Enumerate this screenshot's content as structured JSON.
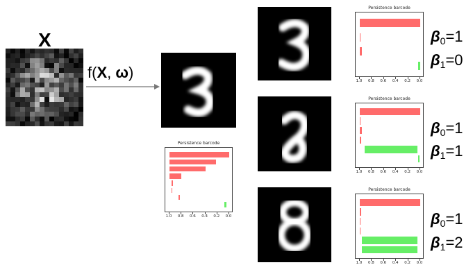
{
  "input": {
    "label": "X"
  },
  "function": {
    "prefix": "f(",
    "x": "X",
    "sep": ", ",
    "omega": "ω",
    "suffix": ")"
  },
  "barcode_title": "Persistence barcode",
  "axis_ticks": [
    "1.0",
    "0.8",
    "0.6",
    "0.4",
    "0.2",
    "0.0"
  ],
  "colors": {
    "h0": "#ff6b6b",
    "h1": "#66ee66",
    "frame": "#444444"
  },
  "chart_data": [
    {
      "type": "bar",
      "title": "Persistence barcode",
      "x_ticks": [
        "1.0",
        "0.8",
        "0.6",
        "0.4",
        "0.2",
        "0.0"
      ],
      "xlim": [
        1.0,
        0.0
      ],
      "bars": [
        {
          "dim": 0,
          "birth": 1.0,
          "death": 0.0
        },
        {
          "dim": 0,
          "birth": 1.0,
          "death": 0.22
        },
        {
          "dim": 0,
          "birth": 1.0,
          "death": 0.4
        },
        {
          "dim": 0,
          "birth": 1.0,
          "death": 0.8
        },
        {
          "dim": 0,
          "birth": 0.96,
          "death": 0.94
        },
        {
          "dim": 0,
          "birth": 0.96,
          "death": 0.955
        },
        {
          "dim": 0,
          "birth": 0.85,
          "death": 0.82
        },
        {
          "dim": 1,
          "birth": 0.08,
          "death": 0.05
        }
      ]
    },
    {
      "type": "bar",
      "title": "Persistence barcode",
      "x_ticks": [
        "1.0",
        "0.8",
        "0.6",
        "0.4",
        "0.2",
        "0.0"
      ],
      "xlim": [
        1.0,
        0.0
      ],
      "bars": [
        {
          "dim": 0,
          "birth": 1.0,
          "death": 0.0
        },
        {
          "dim": 0,
          "birth": 1.0,
          "death": 0.99
        },
        {
          "dim": 0,
          "birth": 1.0,
          "death": 0.97
        },
        {
          "dim": 1,
          "birth": 0.03,
          "death": 0.0
        }
      ]
    },
    {
      "type": "bar",
      "title": "Persistence barcode",
      "x_ticks": [
        "1.0",
        "0.8",
        "0.6",
        "0.4",
        "0.2",
        "0.0"
      ],
      "xlim": [
        1.0,
        0.0
      ],
      "bars": [
        {
          "dim": 0,
          "birth": 1.0,
          "death": 0.0
        },
        {
          "dim": 0,
          "birth": 1.0,
          "death": 0.99
        },
        {
          "dim": 0,
          "birth": 1.0,
          "death": 0.97
        },
        {
          "dim": 0,
          "birth": 1.0,
          "death": 0.98
        },
        {
          "dim": 1,
          "birth": 0.92,
          "death": 0.05
        },
        {
          "dim": 1,
          "birth": 0.03,
          "death": 0.01
        }
      ]
    },
    {
      "type": "bar",
      "title": "Persistence barcode",
      "x_ticks": [
        "1.0",
        "0.8",
        "0.6",
        "0.4",
        "0.2",
        "0.0"
      ],
      "xlim": [
        1.0,
        0.0
      ],
      "bars": [
        {
          "dim": 0,
          "birth": 1.0,
          "death": 0.0
        },
        {
          "dim": 0,
          "birth": 1.0,
          "death": 0.98
        },
        {
          "dim": 0,
          "birth": 1.0,
          "death": 0.99
        },
        {
          "dim": 0,
          "birth": 1.0,
          "death": 0.985
        },
        {
          "dim": 1,
          "birth": 0.96,
          "death": 0.05
        },
        {
          "dim": 1,
          "birth": 0.96,
          "death": 0.05
        }
      ]
    }
  ],
  "betti": [
    {
      "b0_sym": "β",
      "b0_sub": "0",
      "b0_val": "=1",
      "b1_sym": "β",
      "b1_sub": "1",
      "b1_val": "=0"
    },
    {
      "b0_sym": "β",
      "b0_sub": "0",
      "b0_val": "=1",
      "b1_sym": "β",
      "b1_sub": "1",
      "b1_val": "=1"
    },
    {
      "b0_sym": "β",
      "b0_sub": "0",
      "b0_val": "=1",
      "b1_sym": "β",
      "b1_sub": "1",
      "b1_val": "=2"
    }
  ]
}
